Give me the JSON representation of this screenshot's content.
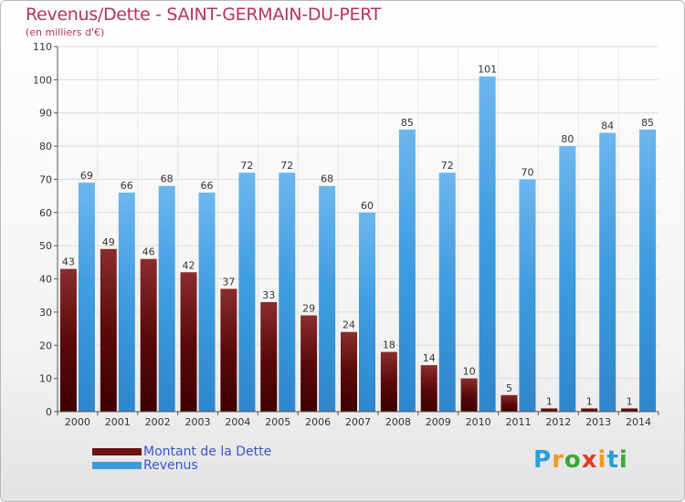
{
  "title": "Revenus/Dette - SAINT-GERMAIN-DU-PERT",
  "subtitle": "(en milliers d'€)",
  "logo": {
    "letters": [
      "P",
      "r",
      "o",
      "x",
      "i",
      "t",
      "i"
    ],
    "colors": [
      "#2a9fd8",
      "#f29a1a",
      "#3aa935",
      "#e53a27",
      "#f29a1a",
      "#2a9fd8",
      "#3aa935"
    ]
  },
  "legend": {
    "position": "bottom-left",
    "items": [
      {
        "label": "Montant de la Dette",
        "color": "#6b1414"
      },
      {
        "label": "Revenus",
        "color": "#3d9be0"
      }
    ]
  },
  "chart_data": {
    "type": "bar",
    "categories": [
      "2000",
      "2001",
      "2002",
      "2003",
      "2004",
      "2005",
      "2006",
      "2007",
      "2008",
      "2009",
      "2010",
      "2011",
      "2012",
      "2013",
      "2014"
    ],
    "series": [
      {
        "name": "Montant de la Dette",
        "color": "#6b1414",
        "values": [
          43,
          49,
          46,
          42,
          37,
          33,
          29,
          24,
          18,
          14,
          10,
          5,
          1,
          1,
          1
        ]
      },
      {
        "name": "Revenus",
        "color": "#3d9be0",
        "values": [
          69,
          66,
          68,
          66,
          72,
          72,
          68,
          60,
          85,
          72,
          101,
          70,
          80,
          84,
          85
        ]
      }
    ],
    "yticks": [
      0,
      10,
      20,
      30,
      40,
      50,
      60,
      70,
      80,
      90,
      100,
      110
    ],
    "ylim": [
      0,
      110
    ],
    "grid": true,
    "data_labels": true
  }
}
